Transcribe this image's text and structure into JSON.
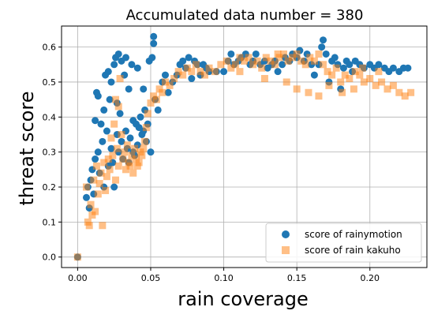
{
  "chart_data": {
    "type": "scatter",
    "title": "Accumulated data number = 380",
    "xlabel": "rain coverage",
    "ylabel": "threat score",
    "xlim": [
      -0.011,
      0.239
    ],
    "ylim": [
      -0.03,
      0.66
    ],
    "xticks": [
      0.0,
      0.05,
      0.1,
      0.15,
      0.2
    ],
    "xtick_labels": [
      "0.00",
      "0.05",
      "0.10",
      "0.15",
      "0.20"
    ],
    "yticks": [
      0.0,
      0.1,
      0.2,
      0.3,
      0.4,
      0.5,
      0.6
    ],
    "ytick_labels": [
      "0.0",
      "0.1",
      "0.2",
      "0.3",
      "0.4",
      "0.5",
      "0.6"
    ],
    "grid": true,
    "legend": {
      "position": "lower-right"
    },
    "series": [
      {
        "name": "score of rainymotion",
        "marker": "circle",
        "color": "#1f77b4",
        "points": [
          [
            0.0,
            0.0
          ],
          [
            0.006,
            0.17
          ],
          [
            0.007,
            0.2
          ],
          [
            0.008,
            0.14
          ],
          [
            0.009,
            0.22
          ],
          [
            0.01,
            0.25
          ],
          [
            0.011,
            0.18
          ],
          [
            0.012,
            0.28
          ],
          [
            0.012,
            0.39
          ],
          [
            0.013,
            0.47
          ],
          [
            0.014,
            0.46
          ],
          [
            0.014,
            0.3
          ],
          [
            0.015,
            0.24
          ],
          [
            0.016,
            0.38
          ],
          [
            0.017,
            0.33
          ],
          [
            0.018,
            0.42
          ],
          [
            0.018,
            0.2
          ],
          [
            0.019,
            0.52
          ],
          [
            0.02,
            0.36
          ],
          [
            0.021,
            0.26
          ],
          [
            0.021,
            0.53
          ],
          [
            0.022,
            0.45
          ],
          [
            0.023,
            0.31
          ],
          [
            0.023,
            0.5
          ],
          [
            0.024,
            0.27
          ],
          [
            0.025,
            0.55
          ],
          [
            0.025,
            0.2
          ],
          [
            0.026,
            0.57
          ],
          [
            0.027,
            0.35
          ],
          [
            0.027,
            0.44
          ],
          [
            0.028,
            0.58
          ],
          [
            0.028,
            0.3
          ],
          [
            0.029,
            0.41
          ],
          [
            0.03,
            0.56
          ],
          [
            0.03,
            0.33
          ],
          [
            0.031,
            0.28
          ],
          [
            0.032,
            0.52
          ],
          [
            0.033,
            0.36
          ],
          [
            0.033,
            0.57
          ],
          [
            0.034,
            0.31
          ],
          [
            0.035,
            0.48
          ],
          [
            0.035,
            0.27
          ],
          [
            0.036,
            0.34
          ],
          [
            0.037,
            0.55
          ],
          [
            0.038,
            0.3
          ],
          [
            0.038,
            0.39
          ],
          [
            0.039,
            0.29
          ],
          [
            0.04,
            0.38
          ],
          [
            0.041,
            0.54
          ],
          [
            0.041,
            0.32
          ],
          [
            0.042,
            0.37
          ],
          [
            0.043,
            0.4
          ],
          [
            0.044,
            0.35
          ],
          [
            0.045,
            0.36
          ],
          [
            0.045,
            0.48
          ],
          [
            0.046,
            0.42
          ],
          [
            0.047,
            0.33
          ],
          [
            0.048,
            0.38
          ],
          [
            0.049,
            0.56
          ],
          [
            0.05,
            0.3
          ],
          [
            0.051,
            0.57
          ],
          [
            0.052,
            0.63
          ],
          [
            0.052,
            0.61
          ],
          [
            0.053,
            0.45
          ],
          [
            0.055,
            0.42
          ],
          [
            0.058,
            0.5
          ],
          [
            0.06,
            0.52
          ],
          [
            0.062,
            0.47
          ],
          [
            0.065,
            0.5
          ],
          [
            0.068,
            0.52
          ],
          [
            0.07,
            0.55
          ],
          [
            0.072,
            0.56
          ],
          [
            0.074,
            0.54
          ],
          [
            0.076,
            0.57
          ],
          [
            0.078,
            0.51
          ],
          [
            0.08,
            0.56
          ],
          [
            0.082,
            0.55
          ],
          [
            0.084,
            0.52
          ],
          [
            0.086,
            0.55
          ],
          [
            0.088,
            0.54
          ],
          [
            0.09,
            0.53
          ],
          [
            0.095,
            0.53
          ],
          [
            0.1,
            0.53
          ],
          [
            0.103,
            0.56
          ],
          [
            0.105,
            0.58
          ],
          [
            0.107,
            0.55
          ],
          [
            0.11,
            0.56
          ],
          [
            0.112,
            0.57
          ],
          [
            0.115,
            0.58
          ],
          [
            0.118,
            0.55
          ],
          [
            0.12,
            0.56
          ],
          [
            0.122,
            0.58
          ],
          [
            0.125,
            0.55
          ],
          [
            0.128,
            0.56
          ],
          [
            0.13,
            0.54
          ],
          [
            0.133,
            0.55
          ],
          [
            0.135,
            0.56
          ],
          [
            0.137,
            0.53
          ],
          [
            0.14,
            0.55
          ],
          [
            0.142,
            0.57
          ],
          [
            0.145,
            0.56
          ],
          [
            0.147,
            0.58
          ],
          [
            0.15,
            0.57
          ],
          [
            0.152,
            0.59
          ],
          [
            0.155,
            0.56
          ],
          [
            0.157,
            0.58
          ],
          [
            0.16,
            0.55
          ],
          [
            0.162,
            0.52
          ],
          [
            0.165,
            0.55
          ],
          [
            0.167,
            0.6
          ],
          [
            0.168,
            0.62
          ],
          [
            0.17,
            0.58
          ],
          [
            0.172,
            0.5
          ],
          [
            0.174,
            0.56
          ],
          [
            0.176,
            0.57
          ],
          [
            0.178,
            0.55
          ],
          [
            0.18,
            0.48
          ],
          [
            0.182,
            0.54
          ],
          [
            0.184,
            0.56
          ],
          [
            0.186,
            0.55
          ],
          [
            0.188,
            0.53
          ],
          [
            0.19,
            0.56
          ],
          [
            0.193,
            0.55
          ],
          [
            0.196,
            0.54
          ],
          [
            0.2,
            0.55
          ],
          [
            0.203,
            0.54
          ],
          [
            0.206,
            0.55
          ],
          [
            0.21,
            0.54
          ],
          [
            0.213,
            0.53
          ],
          [
            0.216,
            0.54
          ],
          [
            0.22,
            0.53
          ],
          [
            0.223,
            0.54
          ],
          [
            0.226,
            0.54
          ]
        ]
      },
      {
        "name": "score of rain kakuho",
        "marker": "square",
        "color": "#ff7f0e",
        "points": [
          [
            0.0,
            0.0
          ],
          [
            0.006,
            0.2
          ],
          [
            0.007,
            0.1
          ],
          [
            0.008,
            0.09
          ],
          [
            0.009,
            0.15
          ],
          [
            0.01,
            0.12
          ],
          [
            0.011,
            0.22
          ],
          [
            0.012,
            0.13
          ],
          [
            0.013,
            0.26
          ],
          [
            0.014,
            0.18
          ],
          [
            0.015,
            0.21
          ],
          [
            0.016,
            0.24
          ],
          [
            0.017,
            0.09
          ],
          [
            0.018,
            0.27
          ],
          [
            0.019,
            0.19
          ],
          [
            0.02,
            0.23
          ],
          [
            0.021,
            0.28
          ],
          [
            0.022,
            0.25
          ],
          [
            0.023,
            0.34
          ],
          [
            0.024,
            0.29
          ],
          [
            0.025,
            0.38
          ],
          [
            0.026,
            0.22
          ],
          [
            0.026,
            0.45
          ],
          [
            0.027,
            0.31
          ],
          [
            0.028,
            0.43
          ],
          [
            0.028,
            0.26
          ],
          [
            0.029,
            0.51
          ],
          [
            0.03,
            0.35
          ],
          [
            0.031,
            0.28
          ],
          [
            0.032,
            0.3
          ],
          [
            0.033,
            0.25
          ],
          [
            0.034,
            0.32
          ],
          [
            0.035,
            0.27
          ],
          [
            0.036,
            0.26
          ],
          [
            0.037,
            0.29
          ],
          [
            0.038,
            0.24
          ],
          [
            0.039,
            0.31
          ],
          [
            0.04,
            0.28
          ],
          [
            0.041,
            0.26
          ],
          [
            0.042,
            0.27
          ],
          [
            0.043,
            0.3
          ],
          [
            0.044,
            0.29
          ],
          [
            0.045,
            0.31
          ],
          [
            0.046,
            0.33
          ],
          [
            0.047,
            0.37
          ],
          [
            0.048,
            0.41
          ],
          [
            0.05,
            0.44
          ],
          [
            0.052,
            0.46
          ],
          [
            0.054,
            0.45
          ],
          [
            0.056,
            0.48
          ],
          [
            0.058,
            0.47
          ],
          [
            0.06,
            0.5
          ],
          [
            0.063,
            0.49
          ],
          [
            0.066,
            0.51
          ],
          [
            0.069,
            0.53
          ],
          [
            0.072,
            0.52
          ],
          [
            0.075,
            0.54
          ],
          [
            0.078,
            0.53
          ],
          [
            0.081,
            0.55
          ],
          [
            0.084,
            0.53
          ],
          [
            0.087,
            0.52
          ],
          [
            0.09,
            0.54
          ],
          [
            0.094,
            0.53
          ],
          [
            0.098,
            0.55
          ],
          [
            0.102,
            0.56
          ],
          [
            0.105,
            0.54
          ],
          [
            0.108,
            0.55
          ],
          [
            0.111,
            0.53
          ],
          [
            0.114,
            0.56
          ],
          [
            0.117,
            0.57
          ],
          [
            0.12,
            0.55
          ],
          [
            0.123,
            0.56
          ],
          [
            0.126,
            0.54
          ],
          [
            0.129,
            0.57
          ],
          [
            0.132,
            0.56
          ],
          [
            0.135,
            0.55
          ],
          [
            0.138,
            0.57
          ],
          [
            0.141,
            0.58
          ],
          [
            0.144,
            0.56
          ],
          [
            0.147,
            0.57
          ],
          [
            0.15,
            0.58
          ],
          [
            0.153,
            0.56
          ],
          [
            0.156,
            0.55
          ],
          [
            0.159,
            0.57
          ],
          [
            0.162,
            0.56
          ],
          [
            0.165,
            0.58
          ],
          [
            0.168,
            0.55
          ],
          [
            0.171,
            0.53
          ],
          [
            0.174,
            0.52
          ],
          [
            0.177,
            0.54
          ],
          [
            0.18,
            0.5
          ],
          [
            0.183,
            0.52
          ],
          [
            0.186,
            0.51
          ],
          [
            0.19,
            0.53
          ],
          [
            0.193,
            0.52
          ],
          [
            0.196,
            0.5
          ],
          [
            0.2,
            0.51
          ],
          [
            0.204,
            0.49
          ],
          [
            0.208,
            0.5
          ],
          [
            0.212,
            0.48
          ],
          [
            0.216,
            0.49
          ],
          [
            0.22,
            0.47
          ],
          [
            0.224,
            0.46
          ],
          [
            0.228,
            0.47
          ],
          [
            0.15,
            0.48
          ],
          [
            0.158,
            0.47
          ],
          [
            0.165,
            0.46
          ],
          [
            0.143,
            0.5
          ],
          [
            0.128,
            0.51
          ],
          [
            0.172,
            0.49
          ],
          [
            0.181,
            0.47
          ],
          [
            0.189,
            0.48
          ],
          [
            0.195,
            0.54
          ],
          [
            0.206,
            0.53
          ],
          [
            0.111,
            0.57
          ],
          [
            0.137,
            0.58
          ]
        ]
      }
    ]
  }
}
